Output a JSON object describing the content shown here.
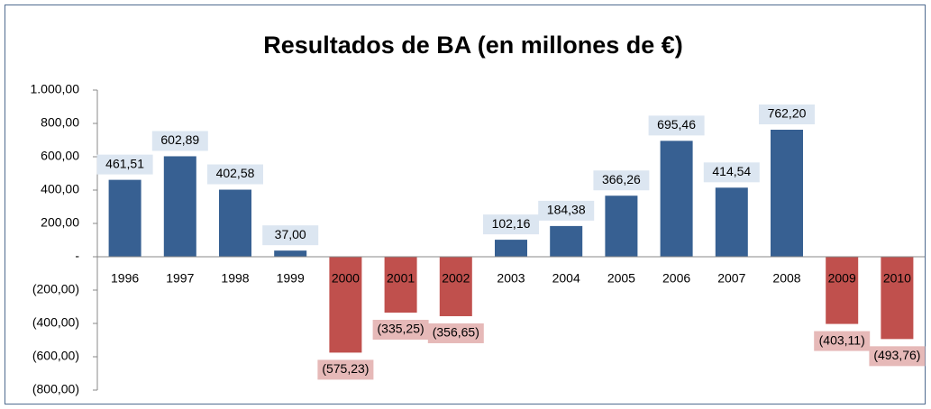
{
  "chart_data": {
    "type": "bar",
    "title": "Resultados de BA (en millones de €)",
    "categories": [
      "1996",
      "1997",
      "1998",
      "1999",
      "2000",
      "2001",
      "2002",
      "2003",
      "2004",
      "2005",
      "2006",
      "2007",
      "2008",
      "2009",
      "2010"
    ],
    "values": [
      461.51,
      602.89,
      402.58,
      37.0,
      -575.23,
      -335.25,
      -356.65,
      102.16,
      184.38,
      366.26,
      695.46,
      414.54,
      762.2,
      -403.11,
      -493.76
    ],
    "value_labels": [
      "461,51",
      "602,89",
      "402,58",
      "37,00",
      "(575,23)",
      "(335,25)",
      "(356,65)",
      "102,16",
      "184,38",
      "366,26",
      "695,46",
      "414,54",
      "762,20",
      "(403,11)",
      "(493,76)"
    ],
    "color": "#376092",
    "negative_color": "#c0504d",
    "ylim": [
      -800,
      1000
    ],
    "yticks": [
      {
        "value": -800,
        "label": "(800,00)"
      },
      {
        "value": -600,
        "label": "(600,00)"
      },
      {
        "value": -400,
        "label": "(400,00)"
      },
      {
        "value": -200,
        "label": "(200,00)"
      },
      {
        "value": 0,
        "label": "-"
      },
      {
        "value": 200,
        "label": "200,00"
      },
      {
        "value": 400,
        "label": "400,00"
      },
      {
        "value": 600,
        "label": "600,00"
      },
      {
        "value": 800,
        "label": "800,00"
      },
      {
        "value": 1000,
        "label": "1.000,00"
      }
    ],
    "grid": false
  }
}
